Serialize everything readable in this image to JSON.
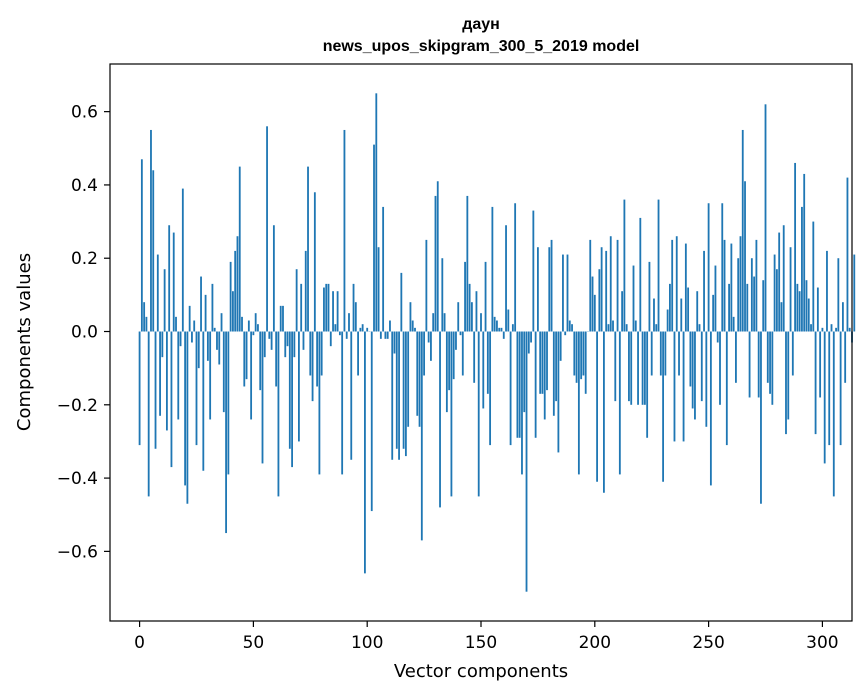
{
  "chart_data": {
    "type": "bar",
    "title": "даун",
    "subtitle": "news_upos_skipgram_300_5_2019 model",
    "xlabel": "Vector components",
    "ylabel": "Components values",
    "xlim": [
      -13,
      313
    ],
    "ylim": [
      -0.79,
      0.73
    ],
    "xticks": [
      0,
      50,
      100,
      150,
      200,
      250,
      300
    ],
    "yticks": [
      -0.6,
      -0.4,
      -0.2,
      0.0,
      0.2,
      0.4,
      0.6
    ],
    "ytick_labels": [
      "−0.6",
      "−0.4",
      "−0.2",
      "0.0",
      "0.2",
      "0.4",
      "0.6"
    ],
    "xtick_labels": [
      "0",
      "50",
      "100",
      "150",
      "200",
      "250",
      "300"
    ],
    "bar_color": "#1f77b4",
    "grid": false,
    "values": [
      -0.31,
      0.47,
      0.08,
      0.04,
      -0.45,
      0.55,
      0.44,
      -0.32,
      0.21,
      -0.23,
      -0.07,
      0.17,
      -0.27,
      0.29,
      -0.37,
      0.27,
      0.04,
      -0.24,
      -0.04,
      0.39,
      -0.42,
      -0.47,
      0.07,
      -0.03,
      0.03,
      -0.31,
      -0.1,
      0.15,
      -0.38,
      0.1,
      -0.08,
      -0.24,
      0.13,
      0.01,
      -0.05,
      -0.09,
      0.05,
      -0.22,
      -0.55,
      -0.39,
      0.19,
      0.11,
      0.22,
      0.26,
      0.45,
      0.04,
      -0.15,
      -0.13,
      0.03,
      -0.24,
      -0.01,
      0.05,
      0.02,
      -0.16,
      -0.36,
      -0.07,
      0.56,
      -0.02,
      -0.05,
      0.29,
      -0.15,
      -0.45,
      0.07,
      0.07,
      -0.07,
      -0.04,
      -0.32,
      -0.37,
      -0.07,
      0.17,
      -0.3,
      0.13,
      -0.05,
      0.22,
      0.45,
      -0.12,
      -0.19,
      0.38,
      -0.15,
      -0.39,
      -0.12,
      0.12,
      0.13,
      0.13,
      -0.04,
      0.11,
      0.02,
      0.11,
      -0.01,
      -0.39,
      0.55,
      -0.02,
      0.05,
      -0.35,
      0.13,
      0.08,
      -0.12,
      0.01,
      0.02,
      -0.66,
      0.01,
      0.0,
      -0.49,
      0.51,
      0.65,
      0.23,
      -0.02,
      0.34,
      -0.02,
      -0.02,
      0.03,
      -0.35,
      -0.06,
      -0.32,
      -0.35,
      0.16,
      -0.32,
      -0.34,
      -0.26,
      0.08,
      0.03,
      0.01,
      -0.23,
      -0.26,
      -0.57,
      -0.12,
      0.25,
      -0.03,
      -0.08,
      0.05,
      0.37,
      0.41,
      -0.48,
      0.2,
      0.05,
      -0.22,
      -0.16,
      -0.45,
      -0.13,
      -0.05,
      0.08,
      -0.01,
      -0.12,
      0.19,
      0.37,
      0.13,
      0.08,
      -0.14,
      0.11,
      -0.45,
      0.05,
      -0.21,
      0.19,
      -0.17,
      -0.31,
      0.34,
      0.04,
      0.03,
      0.01,
      0.01,
      -0.02,
      0.29,
      0.06,
      -0.31,
      0.02,
      0.35,
      -0.29,
      -0.29,
      -0.39,
      -0.22,
      -0.71,
      -0.06,
      -0.03,
      0.33,
      -0.29,
      0.23,
      -0.17,
      -0.17,
      -0.24,
      -0.16,
      0.23,
      0.25,
      -0.23,
      -0.19,
      -0.33,
      -0.08,
      0.21,
      -0.01,
      0.21,
      0.03,
      0.02,
      -0.12,
      -0.14,
      -0.39,
      -0.13,
      -0.12,
      -0.17,
      0.0,
      0.25,
      0.15,
      0.1,
      -0.41,
      0.17,
      0.23,
      -0.44,
      0.22,
      0.02,
      0.26,
      0.03,
      -0.19,
      0.25,
      -0.39,
      0.11,
      0.36,
      0.02,
      -0.19,
      -0.2,
      0.18,
      0.03,
      -0.2,
      0.31,
      -0.2,
      -0.2,
      -0.29,
      0.19,
      -0.12,
      0.09,
      0.02,
      0.36,
      -0.12,
      -0.41,
      -0.12,
      0.06,
      0.13,
      0.25,
      -0.3,
      0.26,
      -0.12,
      0.09,
      -0.3,
      0.24,
      0.12,
      -0.15,
      -0.21,
      -0.24,
      0.11,
      0.02,
      -0.19,
      0.22,
      -0.26,
      0.35,
      -0.42,
      0.1,
      0.18,
      -0.03,
      -0.2,
      0.35,
      0.25,
      -0.31,
      0.13,
      0.24,
      0.04,
      -0.14,
      0.2,
      0.26,
      0.55,
      0.41,
      0.13,
      -0.18,
      0.2,
      0.15,
      0.25,
      -0.18,
      -0.47,
      0.14,
      0.62,
      -0.14,
      -0.17,
      -0.2,
      0.21,
      0.17,
      0.27,
      0.08,
      0.29,
      -0.28,
      -0.24,
      0.23,
      -0.12,
      0.46,
      0.13,
      0.11,
      0.34,
      0.43,
      0.14,
      0.09,
      0.02,
      0.3,
      -0.28,
      0.12,
      -0.18,
      0.01,
      -0.36,
      0.22,
      -0.31,
      0.02,
      -0.45,
      0.01,
      0.2,
      -0.31,
      0.08,
      -0.14,
      0.42,
      0.01,
      -0.03,
      0.21
    ]
  }
}
